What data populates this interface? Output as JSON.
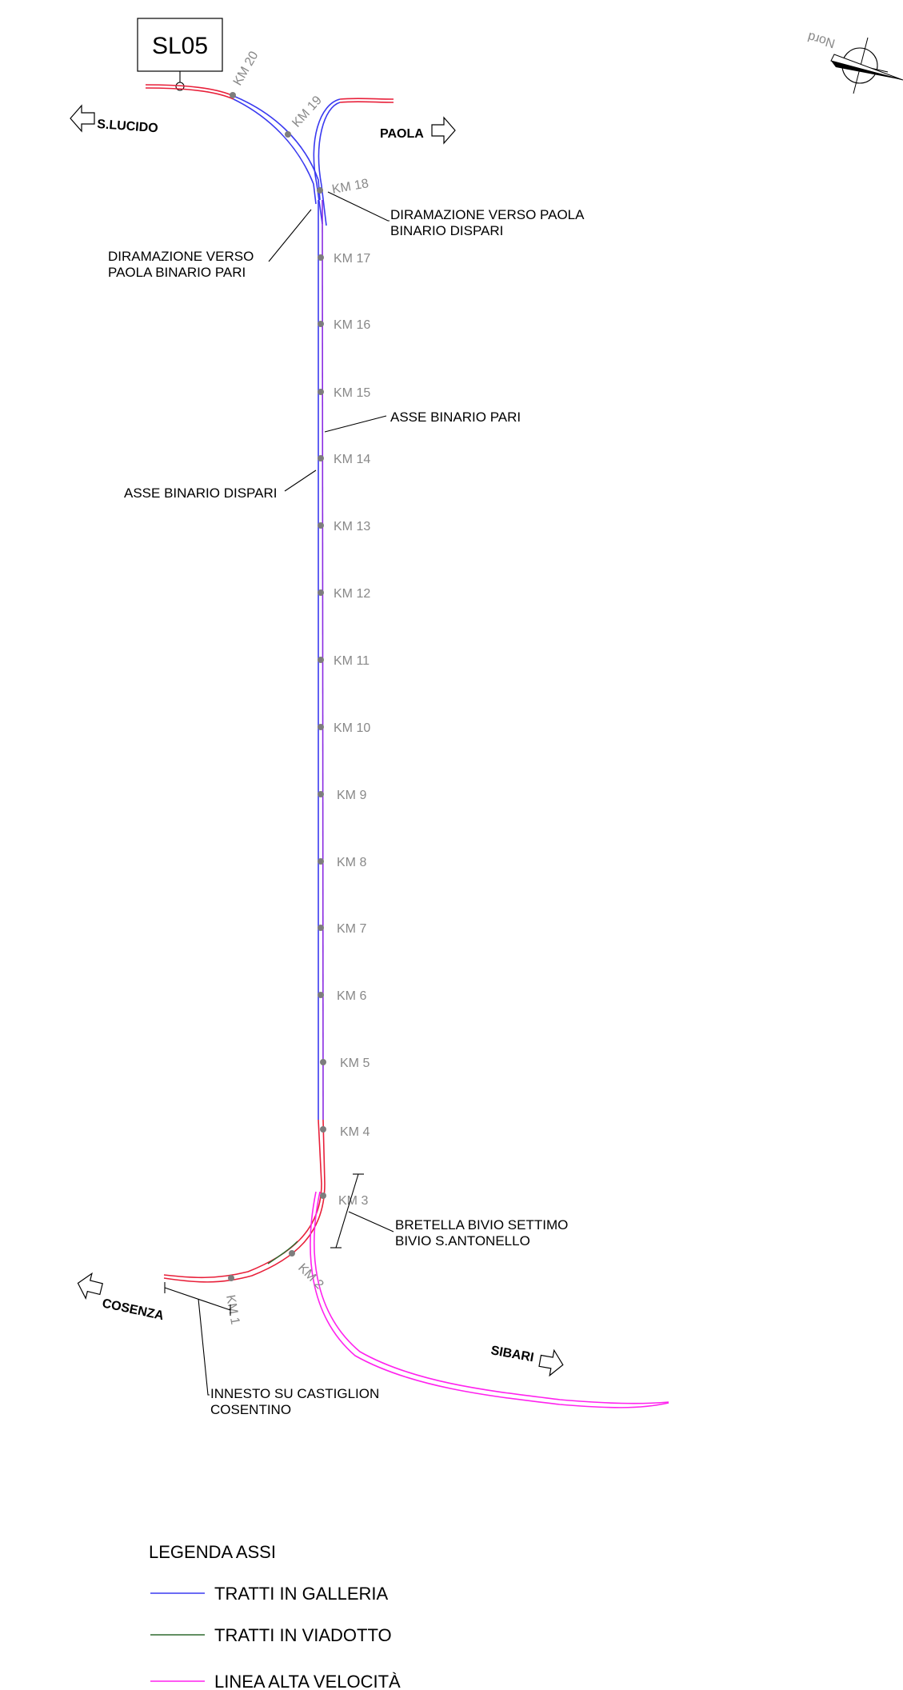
{
  "sheet_label": "SL05",
  "north_label": "Nord",
  "directions": {
    "s_lucido": "S.LUCIDO",
    "paola": "PAOLA",
    "cosenza": "COSENZA",
    "sibari": "SIBARI"
  },
  "annotations": {
    "diramazione_dispari_1": "DIRAMAZIONE VERSO PAOLA",
    "diramazione_dispari_2": "BINARIO DISPARI",
    "diramazione_pari_1": "DIRAMAZIONE VERSO",
    "diramazione_pari_2": "PAOLA BINARIO PARI",
    "asse_pari": "ASSE BINARIO PARI",
    "asse_dispari": "ASSE BINARIO DISPARI",
    "bretella_1": "BRETELLA BIVIO SETTIMO",
    "bretella_2": "BIVIO S.ANTONELLO",
    "innesto_1": "INNESTO SU CASTIGLION",
    "innesto_2": "COSENTINO"
  },
  "km_markers": [
    "KM 20",
    "KM 19",
    "KM 18",
    "KM 17",
    "KM 16",
    "KM 15",
    "KM 14",
    "KM 13",
    "KM 12",
    "KM 11",
    "KM 10",
    "KM 9",
    "KM 8",
    "KM 7",
    "KM 6",
    "KM 5",
    "KM 4",
    "KM 3",
    "KM 2",
    "KM 1"
  ],
  "legend": {
    "title": "LEGENDA ASSI",
    "items": [
      {
        "label": "TRATTI IN GALLERIA",
        "color": "#3a3af0"
      },
      {
        "label": "TRATTI IN VIADOTTO",
        "color": "#2f6a2f"
      },
      {
        "label": "LINEA ALTA VELOCITÀ",
        "color": "#ff22ee"
      }
    ]
  }
}
